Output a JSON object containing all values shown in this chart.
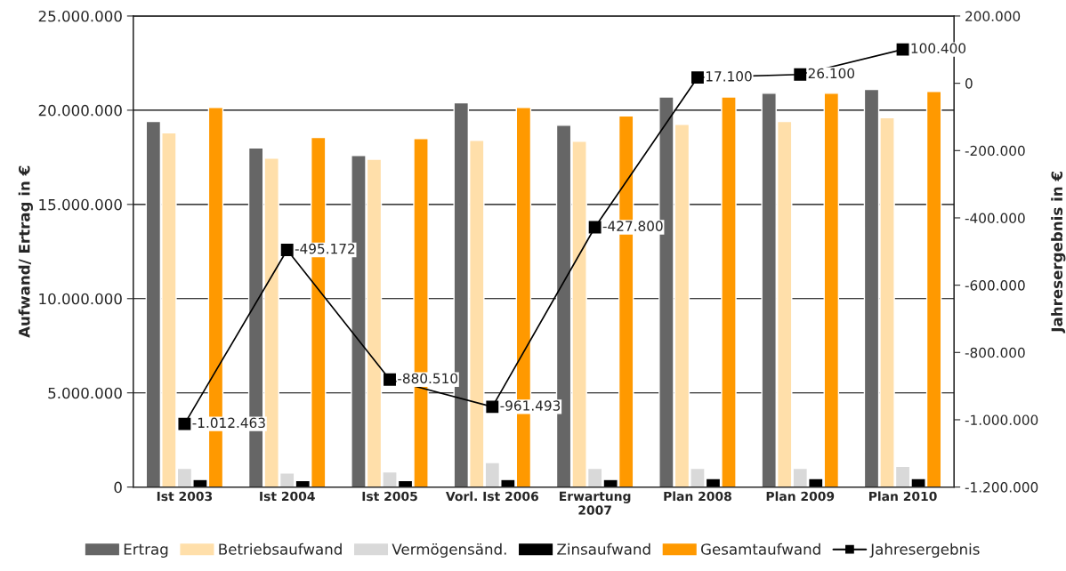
{
  "chart_data": {
    "type": "bar",
    "ylabel": "Aufwand/ Ertrag in €",
    "y2label": "Jahresergebnis in €",
    "categories": [
      "Ist 2003",
      "Ist 2004",
      "Ist 2005",
      "Vorl. Ist 2006",
      "Erwartung\n2007",
      "Plan 2008",
      "Plan 2009",
      "Plan 2010"
    ],
    "series": [
      {
        "name": "Ertrag",
        "color": "#666666",
        "values": [
          19400000,
          18000000,
          17600000,
          20400000,
          19200000,
          20700000,
          20900000,
          21100000
        ]
      },
      {
        "name": "Betriebsaufwand",
        "color": "#ffdfaa",
        "values": [
          18800000,
          17450000,
          17400000,
          18400000,
          18350000,
          19250000,
          19400000,
          19600000
        ]
      },
      {
        "name": "Vermögensänd.",
        "color": "#d9d9d9",
        "values": [
          1000000,
          750000,
          800000,
          1300000,
          1000000,
          1000000,
          1000000,
          1100000
        ]
      },
      {
        "name": "Zinsaufwand",
        "color": "#000000",
        "values": [
          400000,
          350000,
          350000,
          400000,
          400000,
          450000,
          450000,
          450000
        ]
      },
      {
        "name": "Gesamtaufwand",
        "color": "#ff9900",
        "values": [
          20150000,
          18550000,
          18500000,
          20150000,
          19700000,
          20700000,
          20900000,
          21000000
        ]
      },
      {
        "name": "Jahresergebnis",
        "color": "#000000",
        "type": "line",
        "axis": "y2",
        "marker": "square",
        "values": [
          -1012463,
          -495172,
          -880510,
          -961493,
          -427800,
          17100,
          26100,
          100400
        ],
        "value_labels": [
          "-1.012.463",
          "-495.172",
          "-880.510",
          "-961.493",
          "-427.800",
          "17.100",
          "26.100",
          "100.400"
        ]
      }
    ],
    "ylim": [
      0,
      25000000
    ],
    "yticks": [
      {
        "value": 0,
        "label": "0"
      },
      {
        "value": 5000000,
        "label": "5.000.000"
      },
      {
        "value": 10000000,
        "label": "10.000.000"
      },
      {
        "value": 15000000,
        "label": "15.000.000"
      },
      {
        "value": 20000000,
        "label": "20.000.000"
      },
      {
        "value": 25000000,
        "label": "25.000.000"
      }
    ],
    "y2lim": [
      -1200000,
      200000
    ],
    "y2ticks": [
      {
        "value": -1200000,
        "label": "-1.200.000"
      },
      {
        "value": -1000000,
        "label": "-1.000.000"
      },
      {
        "value": -800000,
        "label": "-800.000"
      },
      {
        "value": -600000,
        "label": "-600.000"
      },
      {
        "value": -400000,
        "label": "-400.000"
      },
      {
        "value": -200000,
        "label": "-200.000"
      },
      {
        "value": 0,
        "label": "0"
      },
      {
        "value": 200000,
        "label": "200.000"
      }
    ],
    "grid": "y",
    "legend": "bottom"
  }
}
